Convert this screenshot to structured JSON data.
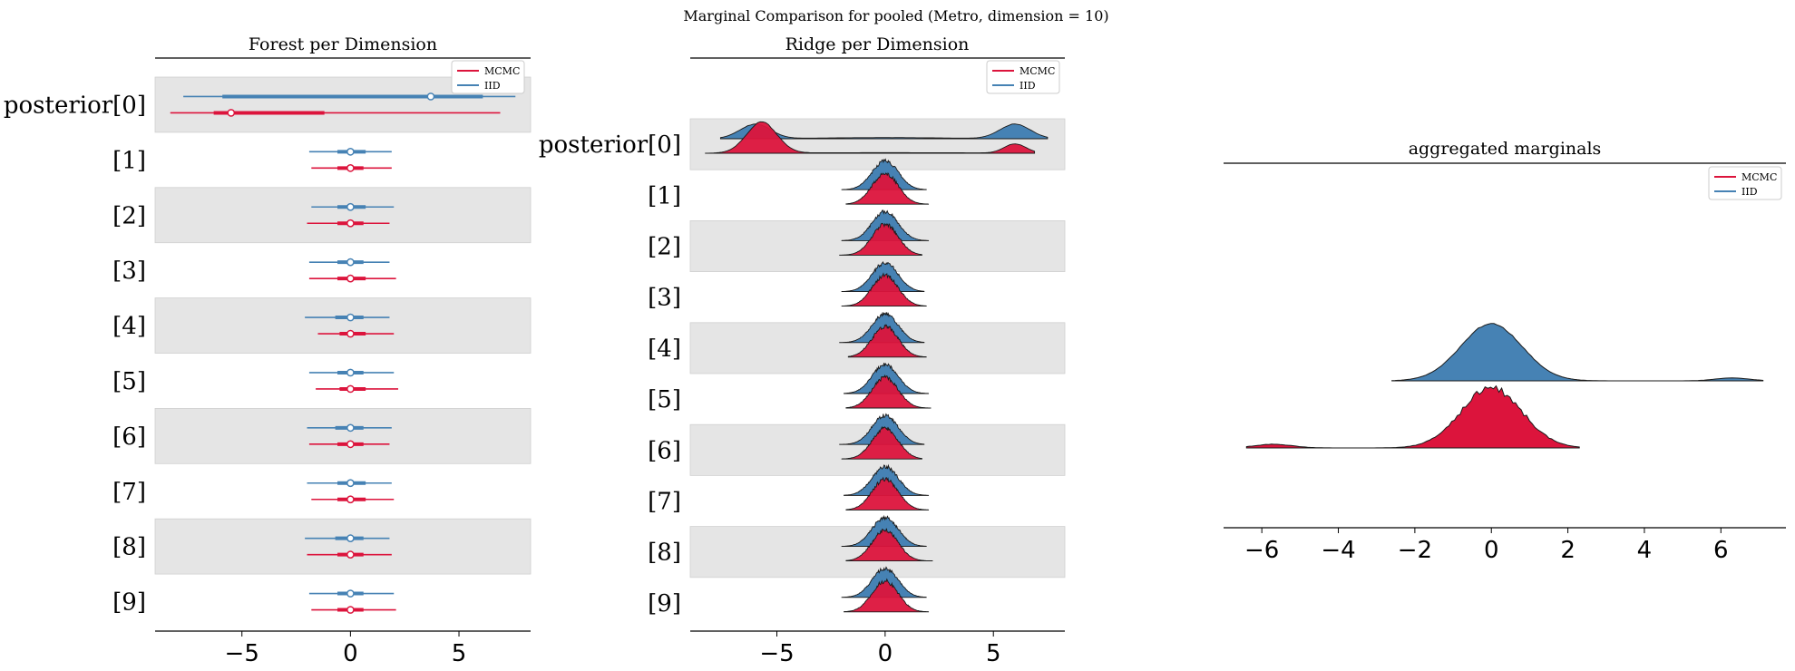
{
  "figure": {
    "suptitle": "Marginal Comparison for pooled (Metro, dimension = 10)"
  },
  "colors": {
    "mcmc": "#dc143c",
    "iid": "#4682b4",
    "band": "#e5e5e5"
  },
  "chart_data": [
    {
      "id": "forest",
      "type": "forest",
      "title": "Forest per Dimension",
      "rows": [
        "posterior[0]",
        "[1]",
        "[2]",
        "[3]",
        "[4]",
        "[5]",
        "[6]",
        "[7]",
        "[8]",
        "[9]"
      ],
      "xlim": [
        -9,
        8.3
      ],
      "xticks": [
        -5,
        0,
        5
      ],
      "xtick_labels": [
        "−5",
        "0",
        "5"
      ],
      "legend": {
        "position": "top-right",
        "entries": [
          "MCMC",
          "IID"
        ]
      },
      "series": [
        {
          "name": "IID",
          "color": "#4682b4",
          "rows": [
            {
              "lo": -7.7,
              "q1": -5.9,
              "median": 3.7,
              "q3": 6.1,
              "hi": 7.6
            },
            {
              "lo": -1.9,
              "q1": -0.6,
              "median": 0.0,
              "q3": 0.7,
              "hi": 1.9
            },
            {
              "lo": -1.8,
              "q1": -0.6,
              "median": 0.0,
              "q3": 0.7,
              "hi": 2.0
            },
            {
              "lo": -1.9,
              "q1": -0.6,
              "median": 0.0,
              "q3": 0.6,
              "hi": 1.8
            },
            {
              "lo": -2.1,
              "q1": -0.7,
              "median": 0.0,
              "q3": 0.6,
              "hi": 1.8
            },
            {
              "lo": -1.9,
              "q1": -0.6,
              "median": 0.0,
              "q3": 0.6,
              "hi": 2.0
            },
            {
              "lo": -2.0,
              "q1": -0.7,
              "median": 0.0,
              "q3": 0.6,
              "hi": 1.9
            },
            {
              "lo": -2.0,
              "q1": -0.6,
              "median": 0.0,
              "q3": 0.7,
              "hi": 1.9
            },
            {
              "lo": -2.1,
              "q1": -0.7,
              "median": 0.0,
              "q3": 0.6,
              "hi": 1.8
            },
            {
              "lo": -1.9,
              "q1": -0.6,
              "median": 0.0,
              "q3": 0.6,
              "hi": 2.0
            }
          ]
        },
        {
          "name": "MCMC",
          "color": "#dc143c",
          "rows": [
            {
              "lo": -8.3,
              "q1": -6.3,
              "median": -5.5,
              "q3": -1.2,
              "hi": 6.9
            },
            {
              "lo": -1.8,
              "q1": -0.6,
              "median": 0.0,
              "q3": 0.6,
              "hi": 1.9
            },
            {
              "lo": -2.0,
              "q1": -0.6,
              "median": 0.0,
              "q3": 0.6,
              "hi": 1.8
            },
            {
              "lo": -1.9,
              "q1": -0.6,
              "median": 0.0,
              "q3": 0.7,
              "hi": 2.1
            },
            {
              "lo": -1.5,
              "q1": -0.5,
              "median": 0.0,
              "q3": 0.7,
              "hi": 2.0
            },
            {
              "lo": -1.6,
              "q1": -0.5,
              "median": 0.0,
              "q3": 0.7,
              "hi": 2.2
            },
            {
              "lo": -1.9,
              "q1": -0.6,
              "median": 0.0,
              "q3": 0.6,
              "hi": 1.8
            },
            {
              "lo": -1.8,
              "q1": -0.6,
              "median": 0.0,
              "q3": 0.7,
              "hi": 2.0
            },
            {
              "lo": -2.0,
              "q1": -0.6,
              "median": 0.0,
              "q3": 0.6,
              "hi": 1.9
            },
            {
              "lo": -1.8,
              "q1": -0.6,
              "median": 0.0,
              "q3": 0.6,
              "hi": 2.1
            }
          ]
        }
      ]
    },
    {
      "id": "ridge",
      "type": "ridge",
      "title": "Ridge per Dimension",
      "rows": [
        "posterior[0]",
        "[1]",
        "[2]",
        "[3]",
        "[4]",
        "[5]",
        "[6]",
        "[7]",
        "[8]",
        "[9]"
      ],
      "xlim": [
        -9,
        8.3
      ],
      "xticks": [
        -5,
        0,
        5
      ],
      "xtick_labels": [
        "−5",
        "0",
        "5"
      ],
      "legend": {
        "position": "top-right",
        "entries": [
          "MCMC",
          "IID"
        ]
      },
      "series": [
        {
          "name": "IID",
          "color": "#4682b4",
          "rows": [
            {
              "range": [
                -7.6,
                7.5
              ],
              "components": [
                [
                  -6.0,
                  0.7,
                  0.5
                ],
                [
                  6.0,
                  0.7,
                  0.5
                ],
                [
                  0,
                  3.0,
                  0.04
                ]
              ]
            },
            {
              "range": [
                -2.0,
                1.9
              ],
              "components": [
                [
                  0,
                  0.6,
                  1.0
                ]
              ]
            },
            {
              "range": [
                -2.0,
                2.0
              ],
              "components": [
                [
                  0,
                  0.6,
                  1.0
                ]
              ]
            },
            {
              "range": [
                -2.0,
                1.8
              ],
              "components": [
                [
                  0,
                  0.6,
                  1.0
                ]
              ]
            },
            {
              "range": [
                -2.1,
                1.8
              ],
              "components": [
                [
                  0,
                  0.6,
                  1.0
                ]
              ]
            },
            {
              "range": [
                -1.9,
                2.0
              ],
              "components": [
                [
                  0,
                  0.6,
                  1.0
                ]
              ]
            },
            {
              "range": [
                -2.1,
                1.8
              ],
              "components": [
                [
                  0,
                  0.6,
                  1.0
                ]
              ]
            },
            {
              "range": [
                -1.9,
                2.0
              ],
              "components": [
                [
                  0,
                  0.6,
                  1.0
                ]
              ]
            },
            {
              "range": [
                -2.0,
                1.9
              ],
              "components": [
                [
                  0,
                  0.6,
                  1.0
                ]
              ]
            },
            {
              "range": [
                -2.0,
                1.9
              ],
              "components": [
                [
                  0,
                  0.6,
                  1.0
                ]
              ]
            }
          ]
        },
        {
          "name": "MCMC",
          "color": "#dc143c",
          "rows": [
            {
              "range": [
                -8.3,
                6.9
              ],
              "components": [
                [
                  -5.7,
                  0.7,
                  1.0
                ],
                [
                  6.0,
                  0.5,
                  0.3
                ],
                [
                  0,
                  4.0,
                  0.02
                ]
              ]
            },
            {
              "range": [
                -1.8,
                2.0
              ],
              "components": [
                [
                  0,
                  0.6,
                  1.0
                ]
              ]
            },
            {
              "range": [
                -2.1,
                1.7
              ],
              "components": [
                [
                  0,
                  0.6,
                  1.0
                ]
              ]
            },
            {
              "range": [
                -2.0,
                1.9
              ],
              "components": [
                [
                  0,
                  0.6,
                  1.0
                ]
              ]
            },
            {
              "range": [
                -1.7,
                1.9
              ],
              "components": [
                [
                  0,
                  0.6,
                  1.0
                ]
              ]
            },
            {
              "range": [
                -1.8,
                2.1
              ],
              "components": [
                [
                  0,
                  0.6,
                  1.0
                ]
              ]
            },
            {
              "range": [
                -2.0,
                1.7
              ],
              "components": [
                [
                  0,
                  0.6,
                  1.0
                ]
              ]
            },
            {
              "range": [
                -1.8,
                2.0
              ],
              "components": [
                [
                  0,
                  0.6,
                  1.0
                ]
              ]
            },
            {
              "range": [
                -1.8,
                2.2
              ],
              "components": [
                [
                  0,
                  0.6,
                  1.0
                ]
              ]
            },
            {
              "range": [
                -1.9,
                2.0
              ],
              "components": [
                [
                  0,
                  0.6,
                  1.0
                ]
              ]
            }
          ]
        }
      ]
    },
    {
      "id": "aggregated",
      "type": "area",
      "title": "aggregated marginals",
      "xlim": [
        -7,
        7.7
      ],
      "xticks": [
        -6,
        -4,
        -2,
        0,
        2,
        4,
        6
      ],
      "xtick_labels": [
        "−6",
        "−4",
        "−2",
        "0",
        "2",
        "4",
        "6"
      ],
      "legend": {
        "position": "top-right",
        "entries": [
          "MCMC",
          "IID"
        ]
      },
      "series": [
        {
          "name": "IID",
          "color": "#4682b4",
          "range": [
            -2.6,
            7.1
          ],
          "components": [
            [
              0,
              0.8,
              1.0
            ],
            [
              6.3,
              0.45,
              0.05
            ]
          ]
        },
        {
          "name": "MCMC",
          "color": "#dc143c",
          "range": [
            -6.4,
            2.3
          ],
          "components": [
            [
              0,
              0.8,
              1.0
            ],
            [
              -5.7,
              0.5,
              0.06
            ]
          ]
        }
      ]
    }
  ]
}
